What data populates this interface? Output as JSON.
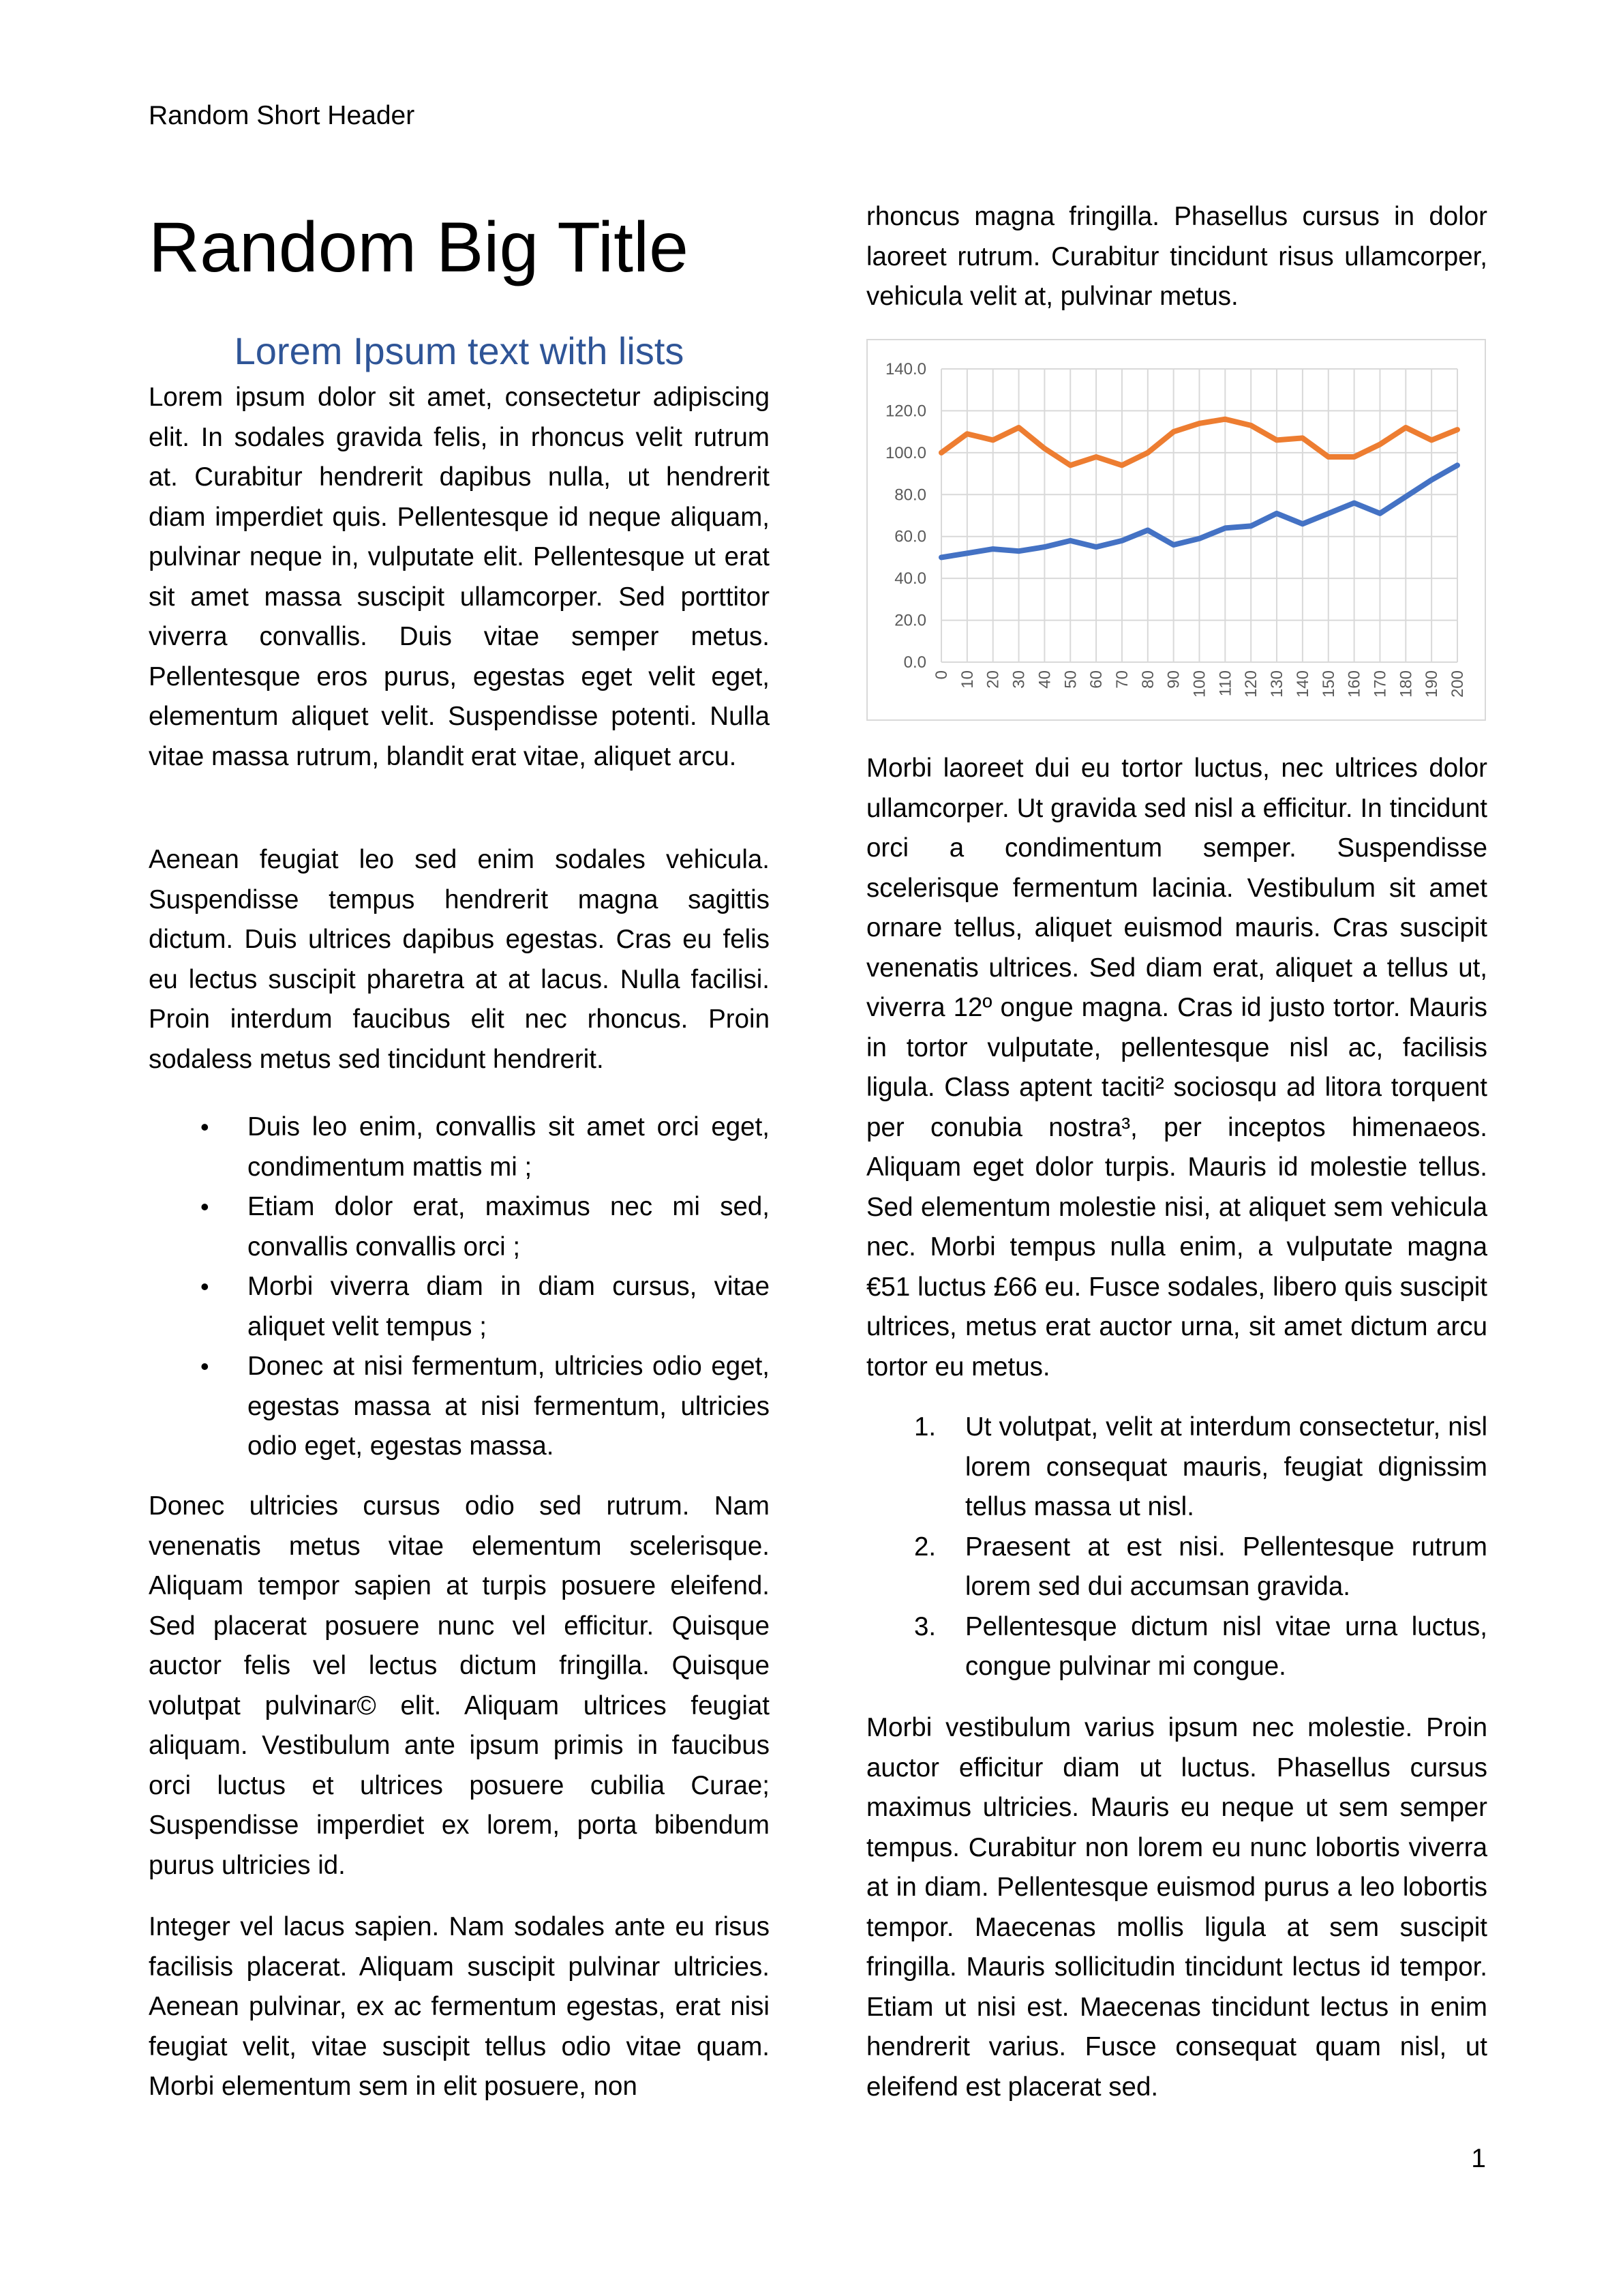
{
  "header": {
    "text": "Random Short Header"
  },
  "title": "Random Big Title",
  "subtitle": "Lorem Ipsum text with lists",
  "left_column": {
    "p1": "Lorem ipsum dolor sit amet, consectetur adipiscing elit. In sodales gravida felis, in rhoncus velit rutrum at. Curabitur hendrerit dapibus nulla, ut hendrerit diam imperdiet quis. Pellentesque id neque aliquam, pulvinar neque in, vulputate elit. Pellentesque ut erat sit amet massa suscipit ullamcorper. Sed porttitor viverra convallis. Duis vitae semper metus. Pellentesque eros purus, egestas eget velit eget, elementum aliquet velit. Suspendisse potenti. Nulla vitae massa rutrum, blandit erat vitae, aliquet arcu.",
    "p2": "Aenean feugiat leo sed enim sodales vehicula. Suspendisse tempus hendrerit magna sagittis dictum. Duis ultrices dapibus egestas. Cras eu felis eu lectus suscipit pharetra at at lacus. Nulla facilisi. Proin interdum faucibus elit nec rhoncus. Proin sodaless metus sed tincidunt hendrerit.",
    "bullet_marker": "•",
    "bullets": [
      "Duis leo enim, convallis sit amet orci eget, condimentum mattis mi ;",
      "Etiam dolor erat, maximus nec mi sed, convallis convallis orci ;",
      "Morbi viverra diam in diam cursus, vitae aliquet velit tempus ;",
      "Donec at nisi fermentum, ultricies odio eget, egestas massa at nisi fermentum, ultricies odio eget, egestas massa."
    ],
    "p3": "Donec ultricies cursus odio sed rutrum. Nam venenatis metus vitae elementum scelerisque. Aliquam tempor sapien at turpis posuere eleifend. Sed placerat posuere nunc vel efficitur. Quisque auctor felis vel lectus dictum fringilla. Quisque volutpat pulvinar© elit. Aliquam ultrices feugiat aliquam. Vestibulum ante ipsum primis in faucibus orci luctus et ultrices posuere cubilia Curae; Suspendisse imperdiet ex lorem, porta bibendum purus ultricies id.",
    "p4": "Integer vel lacus sapien. Nam sodales ante eu risus facilisis placerat. Aliquam suscipit pulvinar ultricies. Aenean pulvinar, ex ac fermentum egestas, erat nisi feugiat velit, vitae suscipit tellus odio vitae quam. Morbi elementum sem in elit posuere, non"
  },
  "right_column": {
    "p0": "rhoncus magna fringilla. Phasellus cursus in dolor laoreet rutrum. Curabitur tincidunt risus ullamcorper, vehicula velit at, pulvinar metus.",
    "p1": "Morbi laoreet dui eu tortor luctus, nec ultrices dolor ullamcorper. Ut gravida sed nisl a efficitur. In tincidunt orci a condimentum semper. Suspendisse scelerisque fermentum lacinia. Vestibulum sit amet ornare tellus, aliquet euismod mauris. Cras suscipit venenatis ultrices. Sed diam erat, aliquet a tellus ut, viverra 12º ongue magna. Cras id justo tortor. Mauris in tortor vulputate, pellentesque nisl ac, facilisis ligula. Class aptent taciti² sociosqu ad litora torquent per conubia nostra³, per inceptos himenaeos. Aliquam eget dolor turpis. Mauris id molestie tellus. Sed elementum molestie nisi, at aliquet sem vehicula nec. Morbi tempus nulla enim, a vulputate magna €51 luctus £66 eu. Fusce sodales, libero quis suscipit ultrices, metus erat auctor urna, sit amet dictum arcu tortor eu metus.",
    "numbered": [
      {
        "marker": "1.",
        "text": "Ut volutpat, velit at interdum consectetur, nisl lorem consequat mauris, feugiat dignissim tellus massa ut nisl."
      },
      {
        "marker": "2.",
        "text": "Praesent at est nisi. Pellentesque rutrum lorem sed dui accumsan gravida."
      },
      {
        "marker": "3.",
        "text": "Pellentesque dictum nisl vitae urna luctus, congue pulvinar mi congue."
      }
    ],
    "p2": "Morbi vestibulum varius ipsum nec molestie. Proin auctor efficitur diam ut luctus. Phasellus cursus maximus ultricies. Mauris eu neque ut sem semper tempus. Curabitur non lorem eu nunc lobortis viverra at in diam. Pellentesque euismod purus a leo lobortis tempor. Maecenas mollis ligula at sem suscipit fringilla. Mauris sollicitudin tincidunt lectus id tempor. Etiam ut nisi est. Maecenas tincidunt lectus in enim hendrerit varius. Fusce consequat quam nisl, ut eleifend est placerat sed."
  },
  "page_number": "1",
  "chart_data": {
    "type": "line",
    "title": "",
    "xlabel": "",
    "ylabel": "",
    "x": [
      0,
      10,
      20,
      30,
      40,
      50,
      60,
      70,
      80,
      90,
      100,
      110,
      120,
      130,
      140,
      150,
      160,
      170,
      180,
      190,
      200
    ],
    "x_tick_labels": [
      "0",
      "10",
      "20",
      "30",
      "40",
      "50",
      "60",
      "70",
      "80",
      "90",
      "100",
      "110",
      "120",
      "130",
      "140",
      "150",
      "160",
      "170",
      "180",
      "190",
      "200"
    ],
    "y_tick_labels": [
      "0.0",
      "20.0",
      "40.0",
      "60.0",
      "80.0",
      "100.0",
      "120.0",
      "140.0"
    ],
    "ylim": [
      0,
      140
    ],
    "grid": true,
    "legend": "none",
    "series": [
      {
        "color": "#4472c4",
        "values": [
          50,
          52,
          54,
          53,
          55,
          58,
          55,
          58,
          63,
          56,
          59,
          64,
          65,
          71,
          66,
          71,
          76,
          71,
          79,
          87,
          94
        ]
      },
      {
        "color": "#ed7d31",
        "values": [
          100,
          109,
          106,
          112,
          102,
          94,
          98,
          94,
          100,
          110,
          114,
          116,
          113,
          106,
          107,
          98,
          98,
          104,
          112,
          106,
          111
        ]
      }
    ]
  }
}
